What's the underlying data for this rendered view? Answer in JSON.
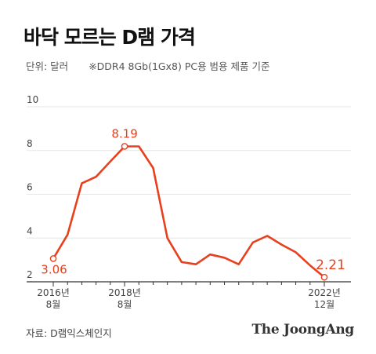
{
  "title": "바닥 모르는 D램 가격",
  "unit_label": "단위: 달러",
  "note": "※DDR4 8Gb(1Gx8) PC용 범용 제품 기준",
  "source": "자료: D램익스체인지",
  "logo": "The JoongAng",
  "colors": {
    "line": "#e8401c",
    "grid": "#e6e6e6",
    "axis": "#333333"
  },
  "chart_data": {
    "type": "line",
    "title": "바닥 모르는 D램 가격",
    "ylabel": "단위: 달러",
    "ylim": [
      2,
      10
    ],
    "yticks": [
      2,
      4,
      6,
      8,
      10
    ],
    "grid": true,
    "x_tick_labels": [
      {
        "index": 0,
        "year": "2016년",
        "month": "8월"
      },
      {
        "index": 5,
        "year": "2018년",
        "month": "8월"
      },
      {
        "index": 19,
        "year": "2022년",
        "month": "12월"
      }
    ],
    "series": [
      {
        "values": [
          3.06,
          4.15,
          6.5,
          6.8,
          7.5,
          8.19,
          8.19,
          7.2,
          4.0,
          2.9,
          2.8,
          3.25,
          3.1,
          2.8,
          3.8,
          4.1,
          3.7,
          3.35,
          2.75,
          2.21
        ]
      }
    ],
    "annotations": [
      {
        "index": 0,
        "text": "3.06"
      },
      {
        "index": 5,
        "text": "8.19"
      },
      {
        "index": 19,
        "text": "2.21"
      }
    ]
  }
}
